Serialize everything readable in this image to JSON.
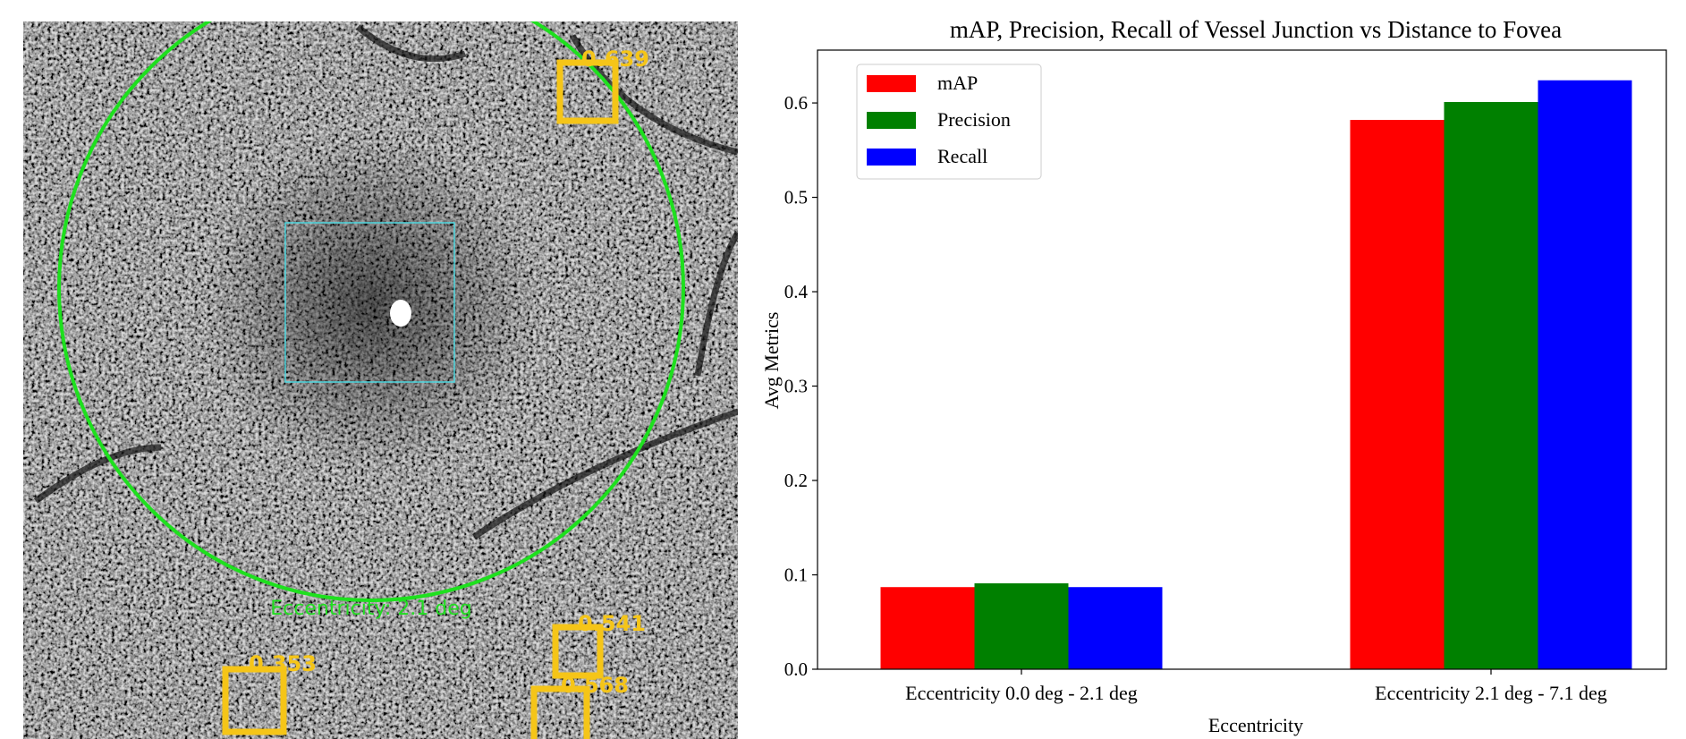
{
  "image_panel": {
    "eccentricity_label": "Eccentricity: 2.1 deg",
    "detections": [
      {
        "score": 0.639
      },
      {
        "score": 0.541
      },
      {
        "score": 0.353
      },
      {
        "score": 0.568
      }
    ]
  },
  "chart_data": {
    "type": "bar",
    "title": "mAP, Precision, Recall of Vessel Junction vs Distance to Fovea",
    "x_label": "Eccentricity",
    "y_label": "Avg Metrics",
    "categories": [
      "Eccentricity 0.0 deg - 2.1 deg",
      "Eccentricity 2.1 deg - 7.1 deg"
    ],
    "series": [
      {
        "name": "mAP",
        "color": "#ff0000",
        "values": [
          0.087,
          0.582
        ]
      },
      {
        "name": "Precision",
        "color": "#008000",
        "values": [
          0.091,
          0.601
        ]
      },
      {
        "name": "Recall",
        "color": "#0000ff",
        "values": [
          0.087,
          0.624
        ]
      }
    ],
    "ylim": [
      0,
      0.656
    ],
    "yticks": [
      {
        "value": 0,
        "label": "0.0"
      },
      0.1,
      0.2,
      0.3,
      0.4,
      0.5,
      0.6
    ],
    "legend": "upper left",
    "grid": false
  }
}
